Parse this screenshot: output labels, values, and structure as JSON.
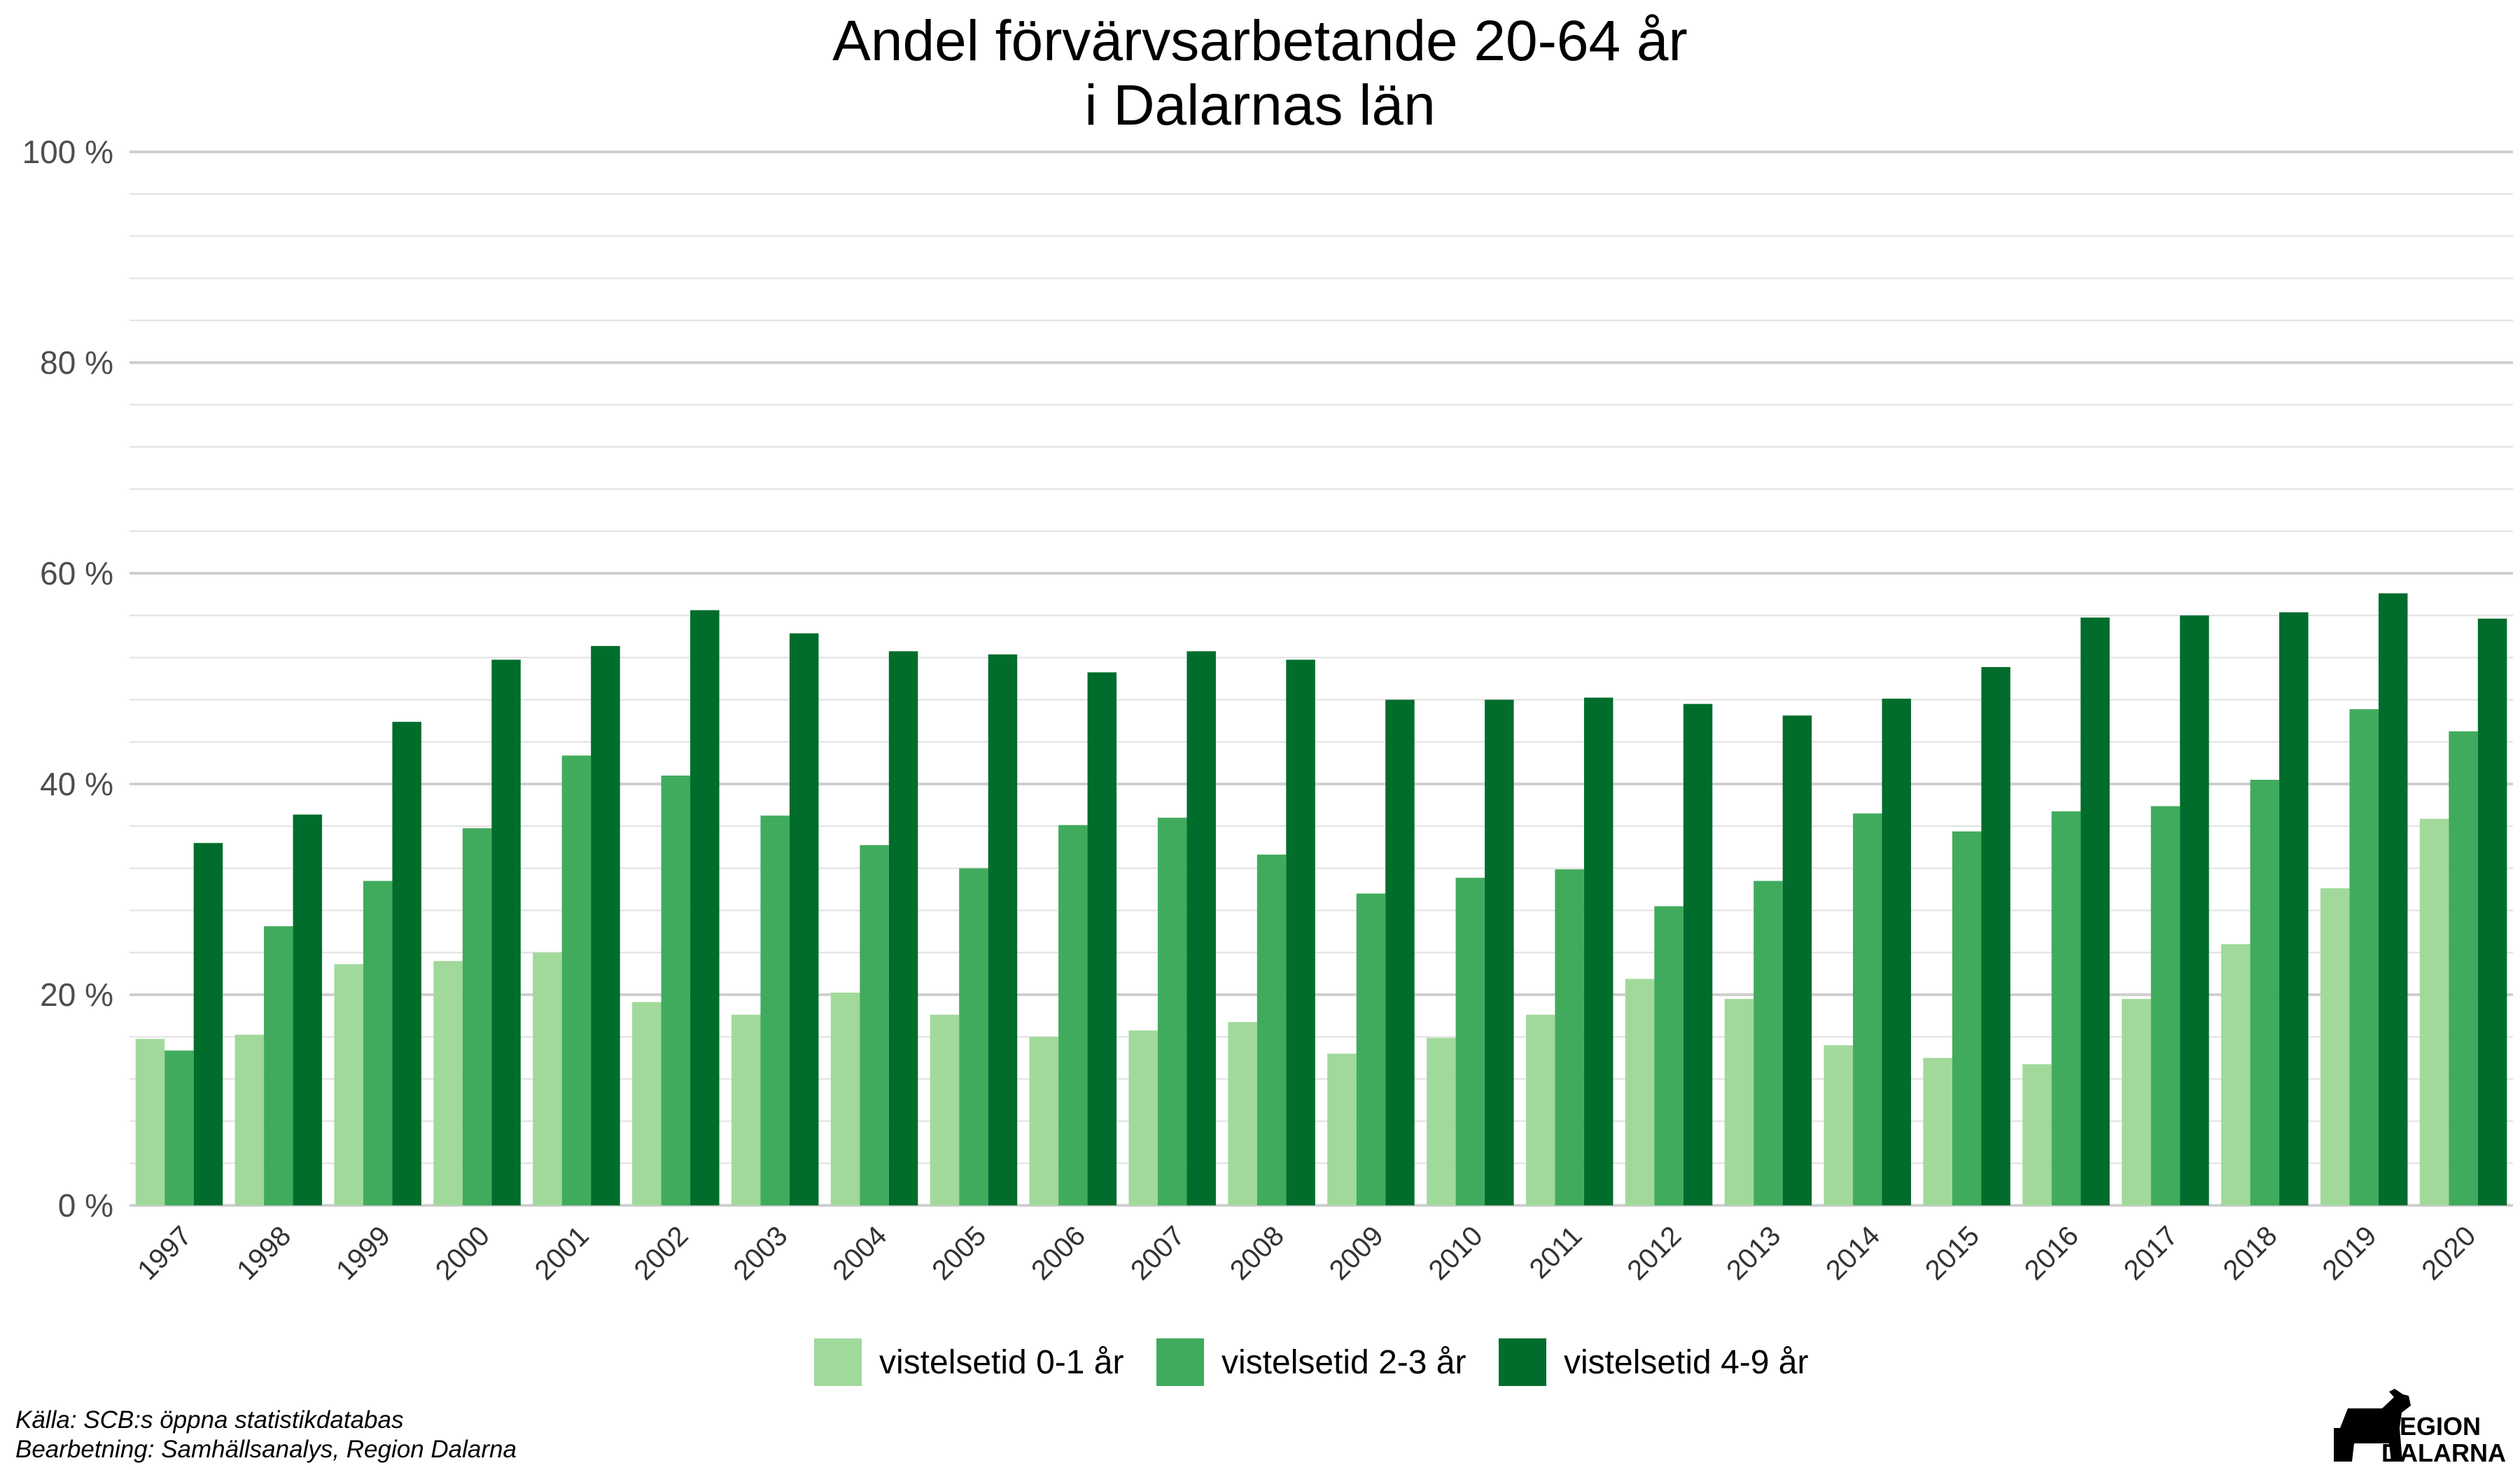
{
  "chart_data": {
    "type": "bar",
    "title": [
      "Andel förvärvsarbetande 20-64 år",
      "i Dalarnas län"
    ],
    "categories": [
      "1997",
      "1998",
      "1999",
      "2000",
      "2001",
      "2002",
      "2003",
      "2004",
      "2005",
      "2006",
      "2007",
      "2008",
      "2009",
      "2010",
      "2011",
      "2012",
      "2013",
      "2014",
      "2015",
      "2016",
      "2017",
      "2018",
      "2019",
      "2020"
    ],
    "series": [
      {
        "name": "vistelsetid 0-1 år",
        "color": "#a1d99b",
        "values": [
          15.8,
          16.2,
          22.9,
          23.2,
          24.0,
          19.3,
          18.1,
          20.2,
          18.1,
          16.0,
          16.6,
          17.4,
          14.4,
          15.9,
          18.1,
          21.5,
          19.6,
          15.2,
          14.0,
          13.4,
          19.6,
          24.8,
          30.1,
          36.7
        ]
      },
      {
        "name": "vistelsetid 2-3 år",
        "color": "#41ab5d",
        "values": [
          14.7,
          26.5,
          30.8,
          35.8,
          42.7,
          40.8,
          37.0,
          34.2,
          32.0,
          36.1,
          36.8,
          33.3,
          29.6,
          31.1,
          31.9,
          28.4,
          30.8,
          37.2,
          35.5,
          37.4,
          37.9,
          40.4,
          47.1,
          45.0
        ]
      },
      {
        "name": "vistelsetid 4-9 år",
        "color": "#006d2c",
        "values": [
          34.4,
          37.1,
          45.9,
          51.8,
          53.1,
          56.5,
          54.3,
          52.6,
          52.3,
          50.6,
          52.6,
          51.8,
          48.0,
          48.0,
          48.2,
          47.6,
          46.5,
          48.1,
          51.1,
          55.8,
          56.0,
          56.3,
          58.1,
          55.7
        ]
      }
    ],
    "ylim": [
      0,
      100
    ],
    "yticks": [
      0,
      20,
      40,
      60,
      80,
      100
    ],
    "ytick_labels": [
      "0 %",
      "20 %",
      "40 %",
      "60 %",
      "80 %",
      "100 %"
    ],
    "grid": true,
    "legend_position": "bottom"
  },
  "caption": {
    "source": "Källa: SCB:s öppna statistikdatabas",
    "processing": "Bearbetning: Samhällsanalys, Region Dalarna"
  },
  "logo": {
    "line1": "REGION",
    "line2": "DALARNA"
  }
}
